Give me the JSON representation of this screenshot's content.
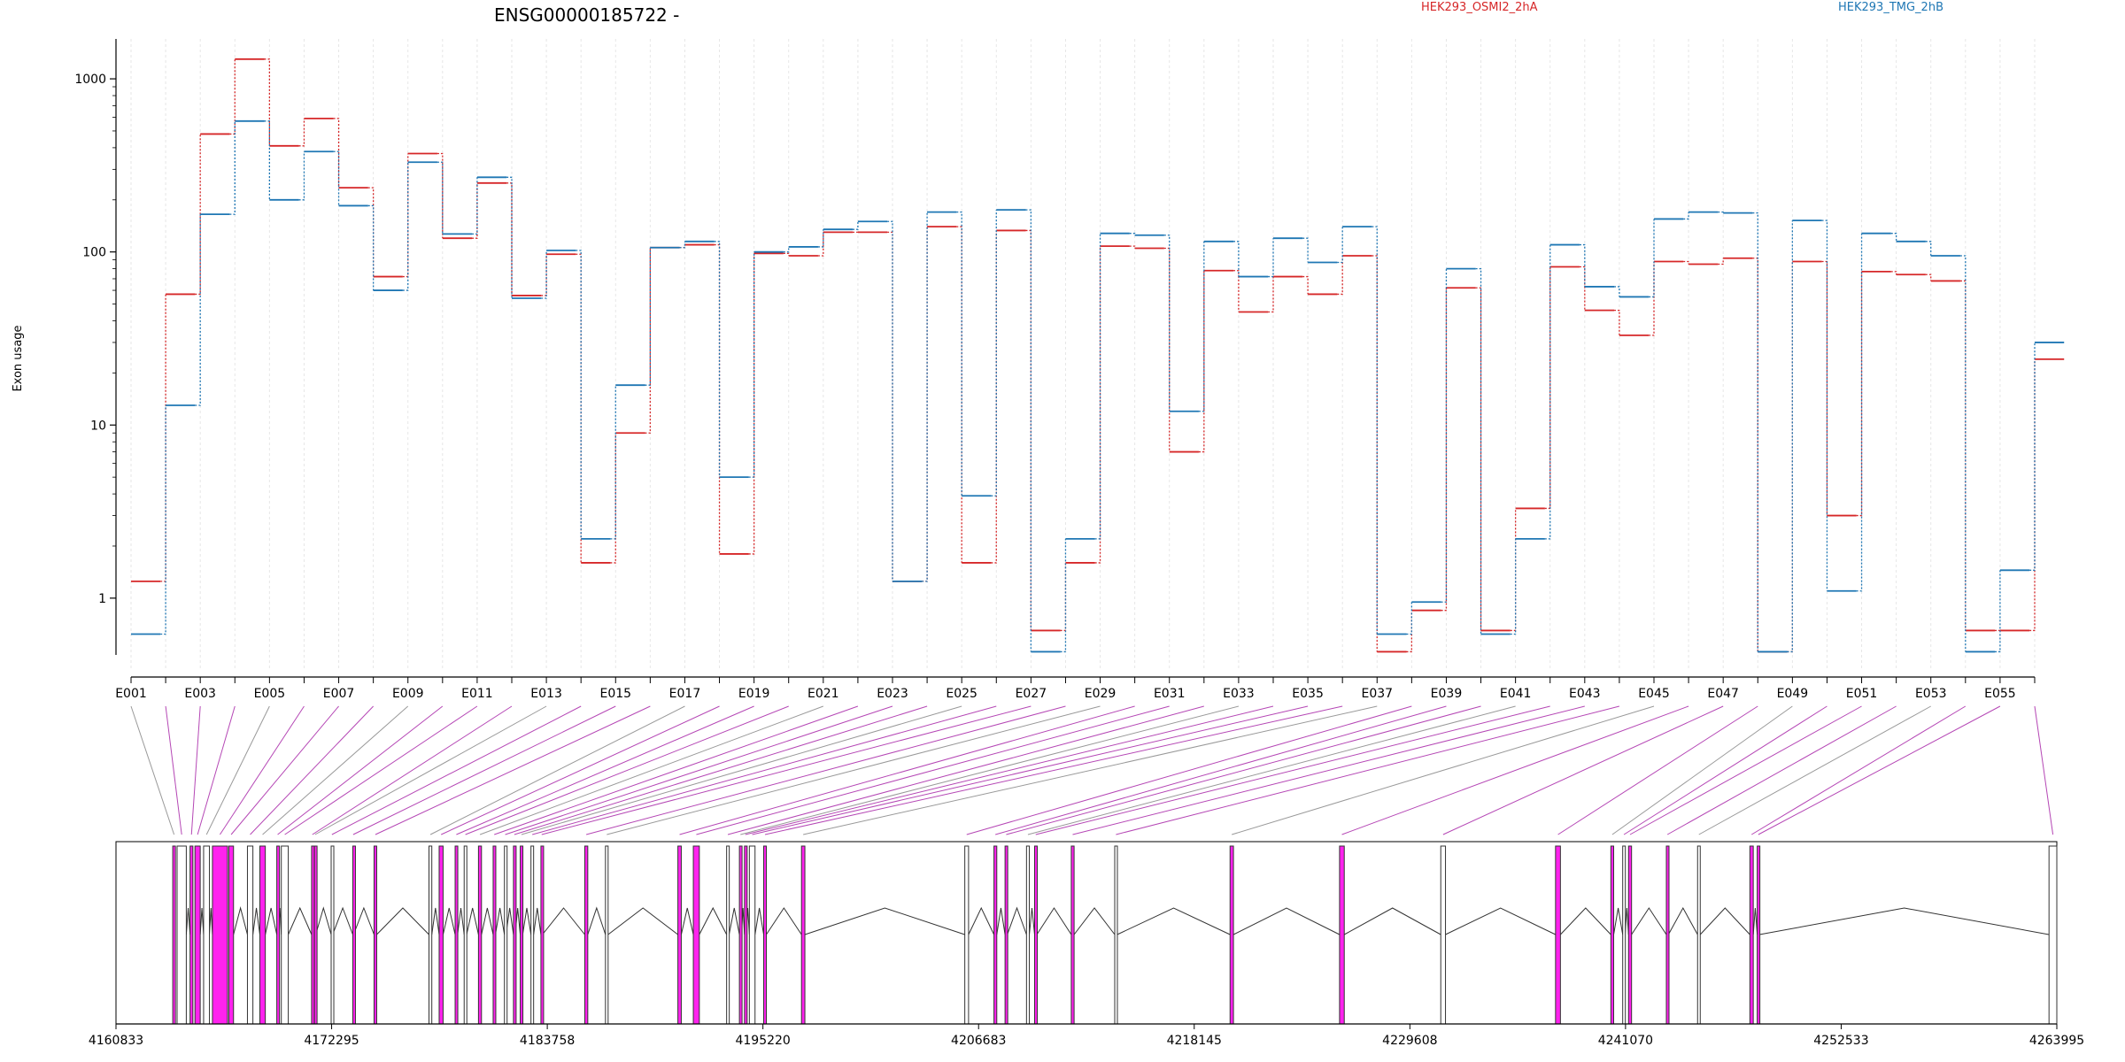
{
  "chart_data": {
    "type": "line",
    "title": "ENSG00000185722 -",
    "ylabel": "Exon usage",
    "yscale": "log",
    "ylim": [
      0.47,
      1700
    ],
    "yticks": [
      1,
      10,
      100,
      1000
    ],
    "ytick_labels": [
      "1",
      "10",
      "100",
      "1000"
    ],
    "exons": [
      "E001",
      "E002",
      "E003",
      "E004",
      "E005",
      "E006",
      "E007",
      "E008",
      "E009",
      "E010",
      "E011",
      "E012",
      "E013",
      "E014",
      "E015",
      "E016",
      "E017",
      "E018",
      "E019",
      "E020",
      "E021",
      "E022",
      "E023",
      "E024",
      "E025",
      "E026",
      "E027",
      "E028",
      "E029",
      "E030",
      "E031",
      "E032",
      "E033",
      "E034",
      "E035",
      "E036",
      "E037",
      "E038",
      "E039",
      "E040",
      "E041",
      "E042",
      "E043",
      "E044",
      "E045",
      "E046",
      "E047",
      "E048",
      "E049",
      "E050",
      "E051",
      "E052",
      "E053",
      "E054",
      "E055",
      "E056"
    ],
    "exon_tick_labels": [
      "E001",
      "E003",
      "E005",
      "E007",
      "E009",
      "E011",
      "E013",
      "E015",
      "E017",
      "E019",
      "E021",
      "E023",
      "E025",
      "E027",
      "E029",
      "E031",
      "E033",
      "E035",
      "E037",
      "E039",
      "E041",
      "E043",
      "E045",
      "E047",
      "E049",
      "E051",
      "E053",
      "E055"
    ],
    "series": [
      {
        "name": "HEK293_OSMI2_2hA",
        "color": "#d62728",
        "values": [
          1.25,
          57,
          480,
          1300,
          410,
          590,
          235,
          72,
          370,
          120,
          250,
          56,
          97,
          1.6,
          9,
          106,
          110,
          1.8,
          98,
          95,
          130,
          130,
          1.25,
          140,
          1.6,
          133,
          0.65,
          1.6,
          108,
          105,
          7,
          78,
          45,
          72,
          57,
          95,
          0.49,
          0.85,
          62,
          0.65,
          3.3,
          82,
          46,
          33,
          88,
          85,
          92,
          0.49,
          88,
          3,
          77,
          74,
          68,
          0.65,
          0.65,
          24
        ]
      },
      {
        "name": "HEK293_TMG_2hB",
        "color": "#1f77b4",
        "values": [
          0.62,
          13,
          165,
          570,
          200,
          380,
          185,
          60,
          330,
          127,
          270,
          54,
          102,
          2.2,
          17,
          106,
          115,
          5,
          100,
          107,
          135,
          150,
          1.25,
          170,
          3.9,
          175,
          0.49,
          2.2,
          128,
          125,
          12,
          115,
          72,
          120,
          87,
          140,
          0.62,
          0.95,
          80,
          0.62,
          2.2,
          110,
          63,
          55,
          155,
          170,
          168,
          0.49,
          152,
          1.1,
          128,
          115,
          95,
          0.49,
          1.45,
          30
        ]
      }
    ],
    "gene_model": {
      "genomic_start": 4160833,
      "genomic_end": 4263995,
      "ticks": [
        4160833,
        4172295,
        4183758,
        4195220,
        4206683,
        4218145,
        4229608,
        4241070,
        4252533,
        4263995
      ],
      "tick_labels": [
        "4160833",
        "4172295",
        "4183758",
        "4195220",
        "4206683",
        "4218145",
        "4229608",
        "4241070",
        "4252533",
        "4263995"
      ],
      "exon_starts": [
        4163850,
        4164080,
        4164770,
        4165030,
        4165490,
        4165960,
        4166830,
        4167820,
        4168480,
        4169380,
        4169620,
        4171230,
        4171380,
        4172270,
        4173420,
        4174550,
        4177470,
        4178010,
        4178860,
        4179340,
        4180100,
        4180880,
        4181480,
        4181960,
        4182320,
        4182890,
        4183420,
        4185750,
        4186850,
        4190700,
        4191520,
        4193290,
        4193970,
        4194240,
        4194500,
        4195260,
        4197270,
        4205950,
        4207500,
        4208090,
        4209230,
        4209660,
        4211610,
        4213920,
        4220050,
        4225870,
        4231250,
        4237350,
        4240290,
        4240920,
        4241230,
        4243240,
        4244900,
        4247680,
        4248070,
        4263580
      ],
      "exon_ends": [
        4163990,
        4164570,
        4164920,
        4165310,
        4165800,
        4166760,
        4167080,
        4168110,
        4168770,
        4169470,
        4169990,
        4171310,
        4171450,
        4172350,
        4173460,
        4174690,
        4177620,
        4178220,
        4178990,
        4179470,
        4180260,
        4181000,
        4181560,
        4182050,
        4182450,
        4183030,
        4183500,
        4185910,
        4186990,
        4190880,
        4191840,
        4193420,
        4194080,
        4194330,
        4194800,
        4195400,
        4197450,
        4206150,
        4207650,
        4208210,
        4209380,
        4209780,
        4211760,
        4214050,
        4220230,
        4226120,
        4231500,
        4237610,
        4240440,
        4241050,
        4241390,
        4243350,
        4245040,
        4247860,
        4248190,
        4263995
      ]
    }
  }
}
